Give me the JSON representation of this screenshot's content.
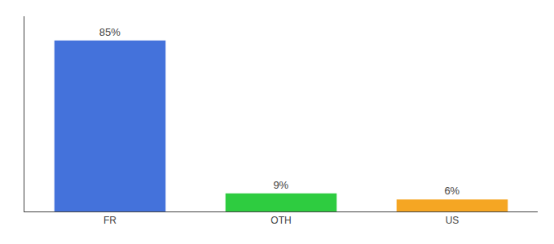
{
  "chart_data": {
    "type": "bar",
    "categories": [
      "FR",
      "OTH",
      "US"
    ],
    "values": [
      85,
      9,
      6
    ],
    "value_labels": [
      "85%",
      "9%",
      "6%"
    ],
    "data_labels": true,
    "colors": [
      "#4472db",
      "#2ecc40",
      "#f5a623"
    ],
    "ylim": [
      0,
      97
    ],
    "tick_labels": "x",
    "grid": false
  }
}
